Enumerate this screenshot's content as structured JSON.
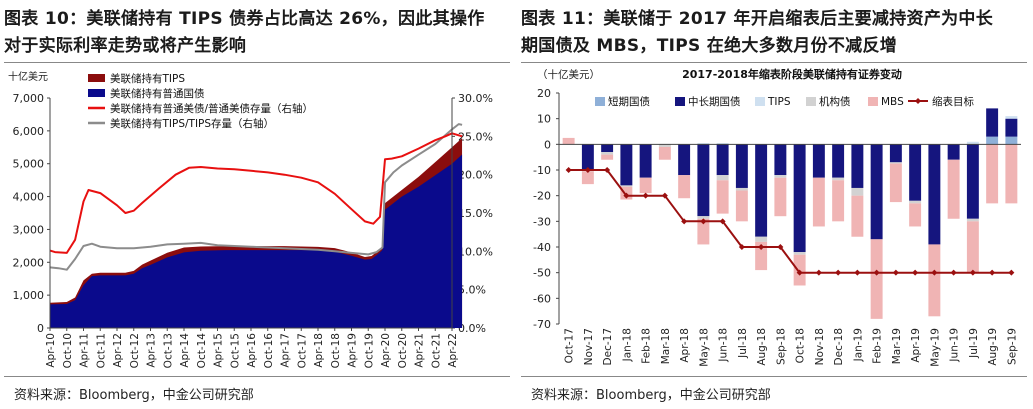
{
  "left": {
    "title_line1": "图表 10：美联储持有 TIPS 债券占比高达 26%，因此其操作",
    "title_line2": "对于实际利率走势或将产生影响",
    "source": "资料来源：Bloomberg，中金公司研究部"
  },
  "right": {
    "title_line1": "图表 11：美联储于 2017 年开启缩表后主要减持资产为中长",
    "title_line2": "期国债及 MBS，TIPS 在绝大多数月份不减反增",
    "source": "资料来源：Bloomberg，中金公司研究部"
  },
  "colors": {
    "tips_holdings": "#8b0d0d",
    "treasury_holdings": "#0a0a8c",
    "red_line": "#e81010",
    "gray_line": "#8c8c8c",
    "short_term": "#8fb0d8",
    "mid_long": "#15157e",
    "tips_bar": "#cfe0f0",
    "agency": "#d2d2d2",
    "mbs": "#f0b4b4",
    "target": "#9b1010"
  },
  "chart_data": [
    {
      "type": "area",
      "ylabel_left": "十亿美元",
      "ylim_left": [
        0,
        7000
      ],
      "yticks_left": [
        "0",
        "1,000",
        "2,000",
        "3,000",
        "4,000",
        "5,000",
        "6,000",
        "7,000"
      ],
      "ylim_right": [
        0,
        30
      ],
      "yticks_right": [
        "0.0%",
        "5.0%",
        "10.0%",
        "15.0%",
        "20.0%",
        "25.0%",
        "30.0%"
      ],
      "x_ticks": [
        "Apr-10",
        "Oct-10",
        "Apr-11",
        "Oct-11",
        "Apr-12",
        "Oct-12",
        "Apr-13",
        "Oct-13",
        "Apr-14",
        "Oct-14",
        "Apr-15",
        "Oct-15",
        "Apr-16",
        "Oct-16",
        "Apr-17",
        "Oct-17",
        "Apr-18",
        "Oct-18",
        "Apr-19",
        "Oct-19",
        "Apr-20",
        "Oct-20",
        "Apr-21",
        "Oct-21",
        "Apr-22"
      ],
      "legend": [
        "美联储持有TIPS",
        "美联储持有普通国债",
        "美联储持有普通美债/普通美债存量（右轴）",
        "美联储持有TIPS/TIPS存量（右轴）"
      ],
      "series": [
        {
          "name": "美联储持有普通国债",
          "axis": "left",
          "kind": "area",
          "points": [
            [
              0,
              720
            ],
            [
              1.0,
              730
            ],
            [
              1.5,
              850
            ],
            [
              2.0,
              1300
            ],
            [
              2.5,
              1580
            ],
            [
              3.0,
              1600
            ],
            [
              4.5,
              1600
            ],
            [
              5.0,
              1650
            ],
            [
              5.5,
              1820
            ],
            [
              6.0,
              1920
            ],
            [
              7.0,
              2150
            ],
            [
              8.0,
              2300
            ],
            [
              9.0,
              2350
            ],
            [
              10.5,
              2370
            ],
            [
              14.0,
              2370
            ],
            [
              16.0,
              2370
            ],
            [
              17.0,
              2320
            ],
            [
              18.0,
              2200
            ],
            [
              18.8,
              2080
            ],
            [
              19.2,
              2100
            ],
            [
              19.7,
              2300
            ],
            [
              19.85,
              2380
            ],
            [
              20.0,
              3600
            ],
            [
              21.0,
              4000
            ],
            [
              22.0,
              4300
            ],
            [
              23.0,
              4650
            ],
            [
              24.0,
              5000
            ],
            [
              24.6,
              5280
            ]
          ]
        },
        {
          "name": "美联储持有TIPS",
          "axis": "left",
          "kind": "stack",
          "top": [
            [
              0,
              770
            ],
            [
              1.0,
              790
            ],
            [
              1.5,
              930
            ],
            [
              2.0,
              1450
            ],
            [
              2.5,
              1650
            ],
            [
              3.0,
              1680
            ],
            [
              4.5,
              1680
            ],
            [
              5.0,
              1740
            ],
            [
              5.5,
              1930
            ],
            [
              6.0,
              2050
            ],
            [
              7.0,
              2290
            ],
            [
              8.0,
              2450
            ],
            [
              9.0,
              2480
            ],
            [
              10.5,
              2490
            ],
            [
              14.0,
              2490
            ],
            [
              16.0,
              2470
            ],
            [
              17.0,
              2430
            ],
            [
              18.0,
              2300
            ],
            [
              18.8,
              2160
            ],
            [
              19.2,
              2190
            ],
            [
              19.7,
              2400
            ],
            [
              19.85,
              2500
            ],
            [
              20.0,
              3800
            ],
            [
              21.0,
              4200
            ],
            [
              22.0,
              4600
            ],
            [
              23.0,
              5050
            ],
            [
              24.0,
              5500
            ],
            [
              24.6,
              5780
            ]
          ]
        },
        {
          "name": "美联储持有普通美债/普通美债存量（右轴）",
          "axis": "right",
          "kind": "line",
          "points": [
            [
              0,
              10.1
            ],
            [
              0.3,
              9.9
            ],
            [
              1.0,
              9.8
            ],
            [
              1.5,
              11.5
            ],
            [
              2.0,
              16.5
            ],
            [
              2.3,
              18.0
            ],
            [
              3.0,
              17.6
            ],
            [
              4.0,
              16.0
            ],
            [
              4.5,
              15.0
            ],
            [
              5.0,
              15.3
            ],
            [
              5.5,
              16.3
            ],
            [
              6.5,
              18.2
            ],
            [
              7.5,
              20.0
            ],
            [
              8.3,
              20.9
            ],
            [
              9.0,
              21.0
            ],
            [
              10.0,
              20.8
            ],
            [
              11.0,
              20.7
            ],
            [
              12.0,
              20.5
            ],
            [
              13.0,
              20.3
            ],
            [
              14.0,
              20.0
            ],
            [
              15.0,
              19.6
            ],
            [
              16.0,
              19.0
            ],
            [
              17.0,
              17.5
            ],
            [
              18.0,
              15.5
            ],
            [
              18.8,
              13.9
            ],
            [
              19.3,
              13.6
            ],
            [
              19.7,
              14.5
            ],
            [
              20.0,
              22.0
            ],
            [
              20.4,
              22.1
            ],
            [
              21.0,
              22.4
            ],
            [
              22.0,
              23.4
            ],
            [
              23.0,
              24.5
            ],
            [
              23.6,
              25.0
            ],
            [
              24.0,
              25.4
            ],
            [
              24.6,
              25.0
            ]
          ]
        },
        {
          "name": "美联储持有TIPS/TIPS存量（右轴）",
          "axis": "right",
          "kind": "line",
          "points": [
            [
              0,
              7.9
            ],
            [
              0.5,
              7.8
            ],
            [
              1.0,
              7.6
            ],
            [
              1.5,
              9.0
            ],
            [
              2.0,
              10.7
            ],
            [
              2.5,
              11.0
            ],
            [
              3.0,
              10.6
            ],
            [
              4.0,
              10.4
            ],
            [
              5.0,
              10.4
            ],
            [
              6.0,
              10.6
            ],
            [
              7.0,
              10.9
            ],
            [
              8.0,
              11.0
            ],
            [
              9.0,
              11.1
            ],
            [
              10.0,
              10.8
            ],
            [
              11.0,
              10.7
            ],
            [
              12.0,
              10.6
            ],
            [
              13.0,
              10.5
            ],
            [
              14.0,
              10.4
            ],
            [
              15.0,
              10.3
            ],
            [
              16.0,
              10.2
            ],
            [
              17.0,
              10.0
            ],
            [
              18.0,
              9.8
            ],
            [
              19.0,
              9.6
            ],
            [
              19.5,
              9.9
            ],
            [
              19.85,
              10.5
            ],
            [
              20.0,
              19.0
            ],
            [
              20.5,
              20.3
            ],
            [
              21.0,
              21.2
            ],
            [
              22.0,
              22.6
            ],
            [
              23.0,
              24.0
            ],
            [
              24.0,
              25.9
            ],
            [
              24.4,
              26.6
            ],
            [
              24.6,
              26.5
            ]
          ]
        }
      ]
    },
    {
      "type": "bar",
      "title": "2017-2018年缩表阶段美联储持有证券变动",
      "ylabel": "（十亿美元）",
      "ylim": [
        -70,
        20
      ],
      "yticks": [
        "20",
        "10",
        "0",
        "-10",
        "-20",
        "-30",
        "-40",
        "-50",
        "-60",
        "-70"
      ],
      "categories": [
        "Oct-17",
        "Nov-17",
        "Dec-17",
        "Jan-18",
        "Feb-18",
        "Mar-18",
        "Apr-18",
        "May-18",
        "Jun-18",
        "Jul-18",
        "Aug-18",
        "Sep-18",
        "Oct-18",
        "Nov-18",
        "Dec-18",
        "Jan-19",
        "Feb-19",
        "Mar-19",
        "Apr-19",
        "May-19",
        "Jun-19",
        "Jul-19",
        "Aug-19",
        "Sep-19"
      ],
      "x_tick_labels": [
        "Oct-17",
        "Nov-17",
        "Dec-17",
        "Jan-18",
        "Feb-18",
        "Mar-18",
        "Apr-18",
        "May-18",
        "Jun-18",
        "Jul-18",
        "Aug-18",
        "Sep-18",
        "Oct-18",
        "Nov-18",
        "Dec-18",
        "Jan-19",
        "Feb-19",
        "Mar-19",
        "Apr-19",
        "May-19",
        "Jun-19",
        "Jul-19",
        "Aug-19",
        "Sep-19"
      ],
      "legend": [
        "短期国债",
        "中长期国债",
        "TIPS",
        "机构债",
        "MBS",
        "缩表目标"
      ],
      "series": [
        {
          "name": "短期国债",
          "values": [
            0,
            0,
            0,
            0,
            0,
            0,
            0,
            0,
            0,
            0,
            0,
            0,
            0,
            0,
            0,
            0,
            0,
            0,
            0,
            0,
            0,
            0,
            3,
            3
          ]
        },
        {
          "name": "中长期国债",
          "values": [
            0,
            -10,
            -3,
            -16,
            -13,
            0,
            -12,
            -28,
            -12,
            -17,
            -36,
            -12,
            -42,
            -13,
            -13,
            -17,
            -37,
            -7,
            -22,
            -39,
            -6,
            -29,
            11,
            7
          ]
        },
        {
          "name": "TIPS",
          "values": [
            0,
            0,
            0,
            0,
            0,
            0,
            0,
            0.5,
            0.5,
            0,
            0,
            0,
            0,
            0,
            0,
            0,
            0,
            0,
            0,
            0,
            0,
            1,
            0,
            1
          ]
        },
        {
          "name": "机构债",
          "values": [
            0,
            -0.5,
            -1,
            -0.5,
            0,
            -1,
            0,
            -1,
            -2,
            -1,
            -2,
            -1,
            -1,
            0,
            -1,
            -3,
            0,
            -0.5,
            -1,
            0,
            0,
            -1,
            0,
            0
          ]
        },
        {
          "name": "MBS",
          "values": [
            2.5,
            -5,
            -2,
            -5,
            -6,
            -5,
            -9,
            -10,
            -13,
            -12,
            -11,
            -15,
            -12,
            -19,
            -16,
            -16,
            -31,
            -15,
            -9,
            -28,
            -23,
            -20,
            -23,
            -23
          ]
        },
        {
          "name": "缩表目标",
          "kind": "line",
          "values": [
            -10,
            -10,
            -10,
            -20,
            -20,
            -20,
            -30,
            -30,
            -30,
            -40,
            -40,
            -40,
            -50,
            -50,
            -50,
            -50,
            -50,
            -50,
            -50,
            -50,
            -50,
            -50,
            -50,
            -50
          ]
        }
      ]
    }
  ]
}
